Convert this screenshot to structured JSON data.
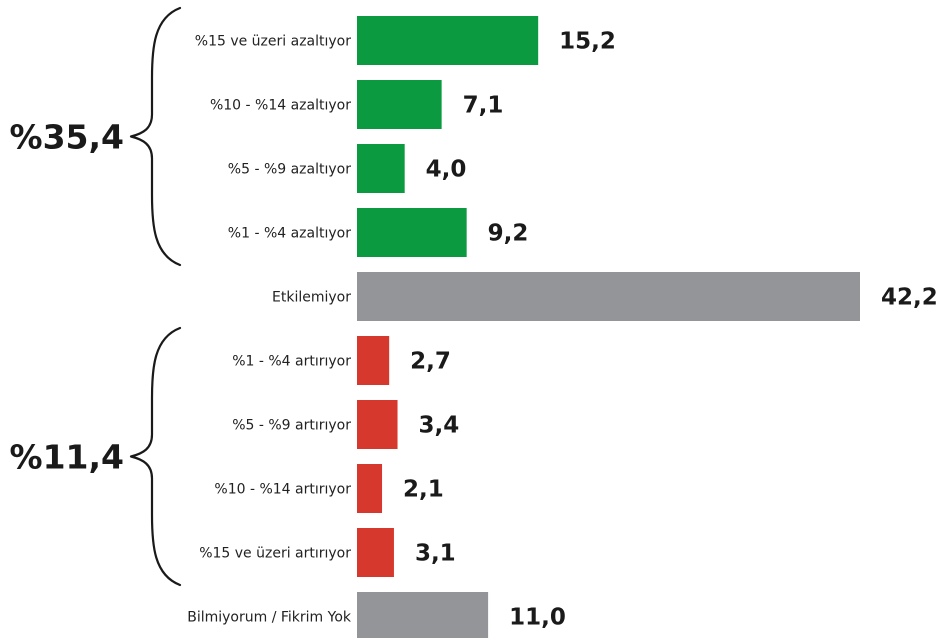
{
  "chart_data": {
    "type": "bar",
    "orientation": "horizontal",
    "title": "",
    "xlabel": "",
    "ylabel": "",
    "xlim": [
      0,
      42.2
    ],
    "grid": false,
    "legend": "none",
    "categories": [
      "%15 ve üzeri azaltıyor",
      "%10 - %14 azaltıyor",
      "%5 - %9 azaltıyor",
      "%1 - %4 azaltıyor",
      "Etkilemiyor",
      "%1 - %4 artırıyor",
      "%5 - %9 artırıyor",
      "%10 - %14 artırıyor",
      "%15 ve üzeri artırıyor",
      "Bilmiyorum / Fikrim Yok"
    ],
    "values": [
      15.2,
      7.1,
      4.0,
      9.2,
      42.2,
      2.7,
      3.4,
      2.1,
      3.1,
      11.0
    ],
    "value_labels": [
      "15,2",
      "7,1",
      "4,0",
      "9,2",
      "42,2",
      "2,7",
      "3,4",
      "2,1",
      "3,1",
      "11,0"
    ],
    "bar_colors": [
      "#0b9a3f",
      "#0b9a3f",
      "#0b9a3f",
      "#0b9a3f",
      "#939598",
      "#d7382d",
      "#d7382d",
      "#d7382d",
      "#d7382d",
      "#939598"
    ],
    "groups": [
      {
        "label": "%35,4",
        "value": 35.4,
        "from_index": 0,
        "to_index": 3
      },
      {
        "label": "%11,4",
        "value": 11.4,
        "from_index": 5,
        "to_index": 8
      }
    ]
  },
  "colors": {
    "decrease": "#0b9a3f",
    "neutral": "#939598",
    "increase": "#d7382d",
    "text": "#1a1a1a"
  }
}
